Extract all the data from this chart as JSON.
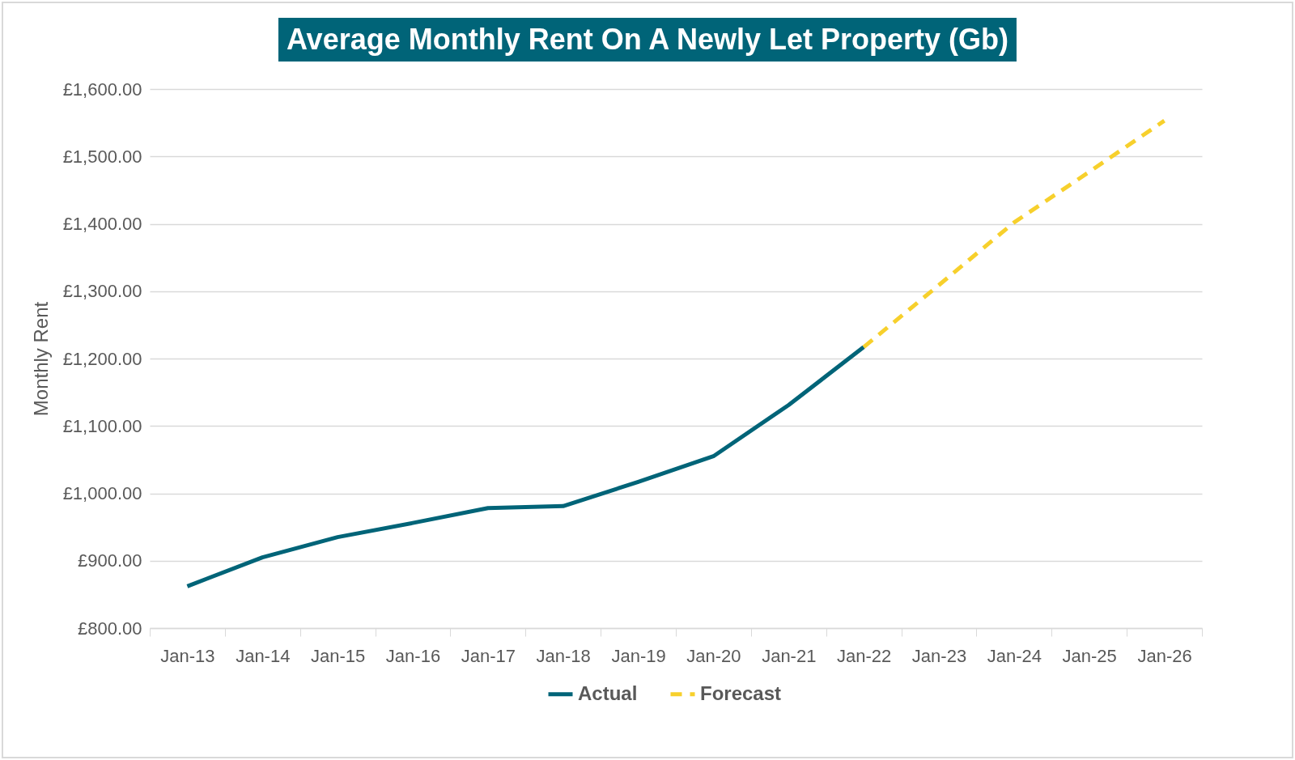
{
  "chart_data": {
    "type": "line",
    "title": "Average Monthly Rent On A Newly Let Property (Gb)",
    "ylabel": "Monthly Rent",
    "categories": [
      "Jan-13",
      "Jan-14",
      "Jan-15",
      "Jan-16",
      "Jan-17",
      "Jan-18",
      "Jan-19",
      "Jan-20",
      "Jan-21",
      "Jan-22",
      "Jan-23",
      "Jan-24",
      "Jan-25",
      "Jan-26"
    ],
    "series": [
      {
        "name": "Actual",
        "color": "#006478",
        "line_style": "solid",
        "values": [
          862,
          905,
          935,
          956,
          978,
          981,
          1017,
          1055,
          1131,
          1217,
          null,
          null,
          null,
          null
        ]
      },
      {
        "name": "Forecast",
        "color": "#f7d02c",
        "line_style": "dashed",
        "values": [
          null,
          null,
          null,
          null,
          null,
          null,
          null,
          null,
          null,
          1217,
          1309,
          1402,
          1477,
          1553
        ]
      }
    ],
    "ylim": [
      800,
      1600
    ],
    "yticks": [
      {
        "value": 800,
        "label": "£800.00"
      },
      {
        "value": 900,
        "label": "£900.00"
      },
      {
        "value": 1000,
        "label": "£1,000.00"
      },
      {
        "value": 1100,
        "label": "£1,100.00"
      },
      {
        "value": 1200,
        "label": "£1,200.00"
      },
      {
        "value": 1300,
        "label": "£1,300.00"
      },
      {
        "value": 1400,
        "label": "£1,400.00"
      },
      {
        "value": 1500,
        "label": "£1,500.00"
      },
      {
        "value": 1600,
        "label": "£1,600.00"
      }
    ],
    "grid": "y",
    "legend": "bottom",
    "marker": "none"
  }
}
